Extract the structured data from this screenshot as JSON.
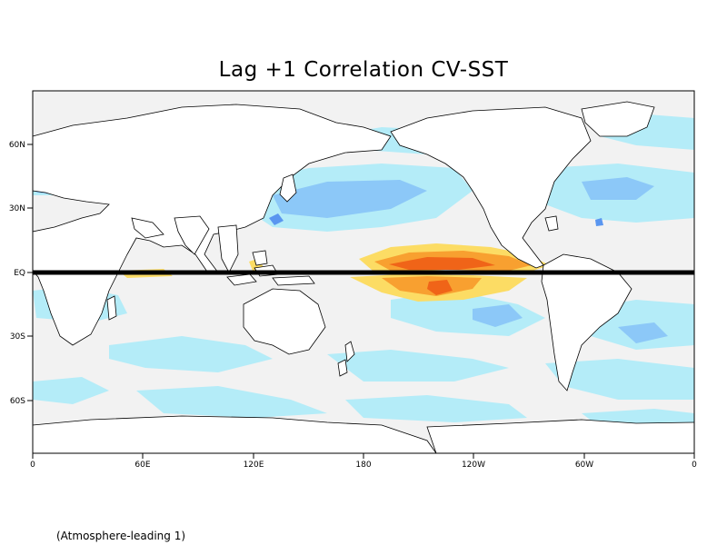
{
  "title": "Lag +1 Correlation CV-SST",
  "footnote": "(Atmosphere-leading 1)",
  "x_ticks": [
    "0",
    "60E",
    "120E",
    "180",
    "120W",
    "60W",
    "0"
  ],
  "y_ticks": [
    "60N",
    "30N",
    "EQ",
    "30S",
    "60S"
  ],
  "colors": {
    "land": "#ffffff",
    "neutral": "#f2f2f2",
    "light_blue": "#b4ecf8",
    "mid_blue": "#8cc8f8",
    "dark_blue": "#5a96f0",
    "light_yellow": "#fcdc64",
    "orange": "#f8a030",
    "red_orange": "#f06418",
    "equator_line": "#000000"
  }
}
